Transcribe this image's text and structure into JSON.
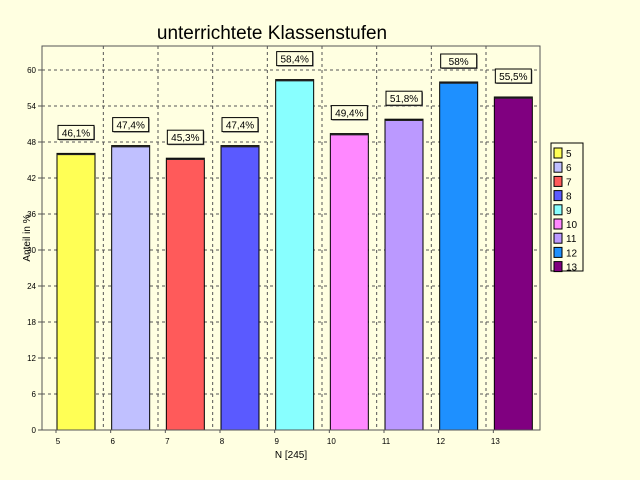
{
  "chart_data": {
    "type": "bar",
    "title": "unterrichtete Klassenstufen",
    "xlabel": "N [245]",
    "ylabel": "Anteil in %",
    "categories": [
      "5",
      "6",
      "7",
      "8",
      "9",
      "10",
      "11",
      "12",
      "13"
    ],
    "values": [
      46.1,
      47.4,
      45.3,
      47.4,
      58.4,
      49.4,
      51.8,
      58,
      55.5
    ],
    "data_labels": [
      "46,1%",
      "47,4%",
      "45,3%",
      "47,4%",
      "58,4%",
      "49,4%",
      "51,8%",
      "58%",
      "55,5%"
    ],
    "colors": [
      "#ffff55",
      "#c0c0ff",
      "#ff5a5a",
      "#5a5aff",
      "#88ffff",
      "#ff88ff",
      "#bb99ff",
      "#1e90ff",
      "#800080"
    ],
    "ylim": [
      0,
      64
    ],
    "yticks": [
      0,
      6,
      12,
      18,
      24,
      30,
      36,
      42,
      48,
      54,
      60
    ],
    "grid": true,
    "legend": {
      "placement": "right",
      "entries": [
        "5",
        "6",
        "7",
        "8",
        "9",
        "10",
        "11",
        "12",
        "13"
      ]
    }
  }
}
